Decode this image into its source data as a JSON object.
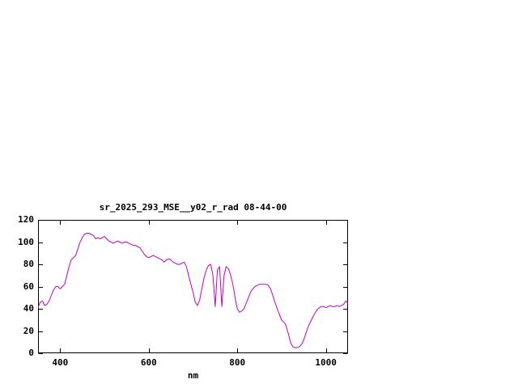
{
  "chart_data": {
    "type": "line",
    "title": "sr_2025_293_MSE__y02_r_rad 08-44-00",
    "xlabel": "nm",
    "ylabel": "",
    "xlim": [
      350,
      1050
    ],
    "ylim": [
      0,
      120
    ],
    "xticks": [
      400,
      600,
      800,
      1000
    ],
    "yticks": [
      0,
      20,
      40,
      60,
      80,
      100,
      120
    ],
    "grid": false,
    "legend_position": "none",
    "line_color": "#c000c0",
    "border_color": "#000000",
    "background_color": "#ffffff",
    "series": [
      {
        "name": "sr_2025_293_MSE__y02_r_rad",
        "x": [
          350,
          355,
          360,
          365,
          370,
          375,
          380,
          385,
          390,
          395,
          400,
          405,
          410,
          415,
          420,
          425,
          430,
          435,
          440,
          445,
          450,
          455,
          460,
          465,
          470,
          475,
          480,
          485,
          490,
          495,
          500,
          505,
          510,
          515,
          520,
          525,
          530,
          535,
          540,
          545,
          550,
          555,
          560,
          565,
          570,
          575,
          580,
          585,
          590,
          595,
          600,
          605,
          610,
          615,
          620,
          625,
          630,
          635,
          640,
          645,
          650,
          655,
          660,
          665,
          670,
          675,
          680,
          685,
          690,
          695,
          700,
          705,
          710,
          715,
          720,
          725,
          730,
          735,
          740,
          745,
          750,
          755,
          760,
          765,
          770,
          775,
          780,
          785,
          790,
          795,
          800,
          805,
          810,
          815,
          820,
          825,
          830,
          835,
          840,
          845,
          850,
          855,
          860,
          865,
          870,
          875,
          880,
          885,
          890,
          895,
          900,
          905,
          910,
          915,
          920,
          925,
          930,
          935,
          940,
          945,
          950,
          955,
          960,
          965,
          970,
          975,
          980,
          985,
          990,
          995,
          1000,
          1005,
          1010,
          1015,
          1020,
          1025,
          1030,
          1035,
          1040,
          1045,
          1050
        ],
        "y": [
          41,
          46,
          47,
          43,
          44,
          47,
          52,
          57,
          60,
          60,
          58,
          60,
          62,
          70,
          78,
          84,
          86,
          88,
          94,
          100,
          104,
          107,
          108,
          108,
          107,
          106,
          103,
          104,
          103,
          104,
          105,
          103,
          101,
          100,
          99,
          100,
          101,
          100,
          99,
          100,
          100,
          99,
          98,
          97,
          97,
          96,
          95,
          92,
          89,
          87,
          86,
          87,
          88,
          87,
          86,
          85,
          84,
          82,
          84,
          85,
          84,
          82,
          81,
          80,
          80,
          81,
          82,
          78,
          70,
          62,
          55,
          46,
          43,
          48,
          58,
          68,
          75,
          79,
          80,
          70,
          42,
          75,
          78,
          42,
          70,
          78,
          76,
          70,
          62,
          50,
          40,
          37,
          38,
          40,
          45,
          50,
          55,
          58,
          60,
          61,
          62,
          62,
          62,
          62,
          61,
          58,
          52,
          46,
          40,
          35,
          30,
          28,
          25,
          18,
          10,
          6,
          5,
          5,
          6,
          8,
          12,
          18,
          24,
          28,
          32,
          36,
          39,
          41,
          42,
          42,
          41,
          42,
          43,
          42,
          42,
          43,
          42,
          43,
          44,
          47,
          45
        ]
      }
    ]
  }
}
